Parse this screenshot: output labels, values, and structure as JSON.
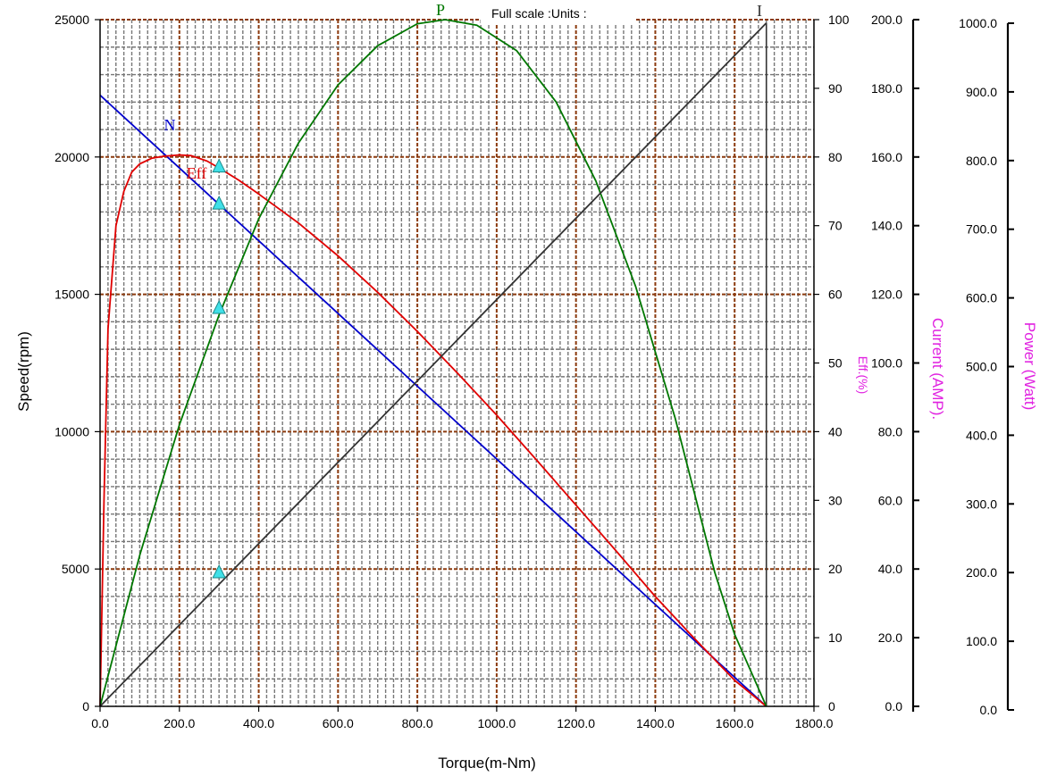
{
  "chart_data": {
    "type": "line",
    "header": "Full scale :Units :",
    "xlabel": "Torque(m-Nm)",
    "xlim": [
      0,
      1800
    ],
    "x_ticks": [
      "0.0",
      "200.0",
      "400.0",
      "600.0",
      "800.0",
      "1000.0",
      "1200.0",
      "1400.0",
      "1600.0",
      "1800.0"
    ],
    "grid": true,
    "axes": {
      "speed": {
        "label": "Speed(rpm)",
        "range": [
          0,
          25000
        ],
        "ticks": [
          "0",
          "5000",
          "10000",
          "15000",
          "20000",
          "25000"
        ]
      },
      "eff": {
        "label": "Eff.(%)",
        "range": [
          0,
          100
        ],
        "ticks": [
          "0",
          "10",
          "20",
          "30",
          "40",
          "50",
          "60",
          "70",
          "80",
          "90",
          "100"
        ]
      },
      "current": {
        "label": "Current (AMP).",
        "range": [
          0,
          200
        ],
        "ticks": [
          "0.0",
          "20.0",
          "40.0",
          "60.0",
          "80.0",
          "100.0",
          "120.0",
          "140.0",
          "160.0",
          "180.0",
          "200.0"
        ]
      },
      "power": {
        "label": "Power (Watt)",
        "range": [
          0,
          1000
        ],
        "ticks": [
          "0.0",
          "100.0",
          "200.0",
          "300.0",
          "400.0",
          "500.0",
          "600.0",
          "700.0",
          "800.0",
          "900.0",
          "1000.0"
        ]
      }
    },
    "series": [
      {
        "name": "N",
        "axis": "speed",
        "color": "#0000cc",
        "points": [
          [
            0,
            22250
          ],
          [
            1680,
            0
          ]
        ]
      },
      {
        "name": "Eff",
        "axis": "eff",
        "color": "#e00000",
        "points": [
          [
            0,
            0
          ],
          [
            10,
            30
          ],
          [
            20,
            55
          ],
          [
            40,
            70
          ],
          [
            60,
            75
          ],
          [
            80,
            77.8
          ],
          [
            100,
            79
          ],
          [
            130,
            79.8
          ],
          [
            160,
            80.1
          ],
          [
            200,
            80.3
          ],
          [
            230,
            80.2
          ],
          [
            270,
            79.4
          ],
          [
            300,
            78.4
          ],
          [
            350,
            76.6
          ],
          [
            400,
            74.6
          ],
          [
            500,
            70.4
          ],
          [
            600,
            65.6
          ],
          [
            700,
            60.3
          ],
          [
            800,
            54.6
          ],
          [
            900,
            48.6
          ],
          [
            1000,
            42.4
          ],
          [
            1100,
            35.9
          ],
          [
            1200,
            29.3
          ],
          [
            1300,
            22.7
          ],
          [
            1400,
            16.0
          ],
          [
            1500,
            9.8
          ],
          [
            1600,
            3.8
          ],
          [
            1680,
            0
          ]
        ]
      },
      {
        "name": "P",
        "axis": "power",
        "color": "#007700",
        "points": [
          [
            0,
            0
          ],
          [
            100,
            220
          ],
          [
            200,
            410
          ],
          [
            300,
            570
          ],
          [
            400,
            710
          ],
          [
            500,
            820
          ],
          [
            600,
            905
          ],
          [
            700,
            962
          ],
          [
            800,
            994
          ],
          [
            870,
            1000
          ],
          [
            950,
            992
          ],
          [
            1050,
            955
          ],
          [
            1150,
            880
          ],
          [
            1250,
            765
          ],
          [
            1350,
            612
          ],
          [
            1450,
            420
          ],
          [
            1550,
            195
          ],
          [
            1600,
            105
          ],
          [
            1680,
            0
          ]
        ]
      },
      {
        "name": "I",
        "axis": "current",
        "color": "#333333",
        "points": [
          [
            0,
            0
          ],
          [
            1680,
            199.0
          ]
        ]
      }
    ],
    "markers": [
      {
        "series": "N",
        "x": 300,
        "value": 18300
      },
      {
        "series": "Eff",
        "x": 300,
        "value": 78.6
      },
      {
        "series": "P",
        "x": 300,
        "value": 580
      },
      {
        "series": "I",
        "x": 300,
        "value": 39
      }
    ],
    "stall_torque": 1680
  },
  "colors": {
    "major_grid": "#8b3a0e",
    "minor_grid": "#777777",
    "axis_label_right": "#e020e0",
    "marker_fill": "#40e0e8"
  }
}
